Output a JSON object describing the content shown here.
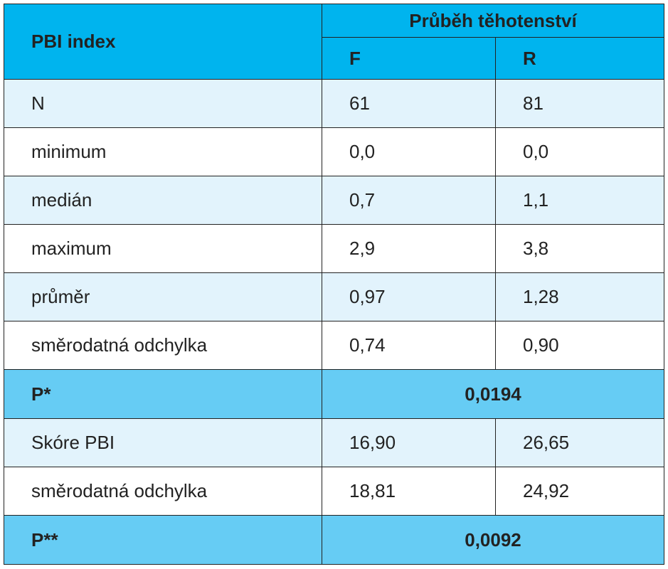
{
  "header": {
    "row_label": "PBI index",
    "group_label": "Průběh těhotenství",
    "col_f": "F",
    "col_r": "R"
  },
  "rows": [
    {
      "label": "N",
      "f": "61",
      "r": "81"
    },
    {
      "label": "minimum",
      "f": "0,0",
      "r": "0,0"
    },
    {
      "label": "medián",
      "f": "0,7",
      "r": "1,1"
    },
    {
      "label": "maximum",
      "f": "2,9",
      "r": "3,8"
    },
    {
      "label": "průměr",
      "f": "0,97",
      "r": "1,28"
    },
    {
      "label": "směrodatná odchylka",
      "f": "0,74",
      "r": "0,90"
    }
  ],
  "p1": {
    "label": "P*",
    "value": "0,0194"
  },
  "rows2": [
    {
      "label": "Skóre PBI",
      "f": "16,90",
      "r": "26,65"
    },
    {
      "label": "směrodatná odchylka",
      "f": "18,81",
      "r": "24,92"
    }
  ],
  "p2": {
    "label": "P**",
    "value": "0,0092"
  },
  "colors": {
    "header": "#00b4ee",
    "p_row": "#66ccf4",
    "light_row": "#e2f3fc"
  }
}
